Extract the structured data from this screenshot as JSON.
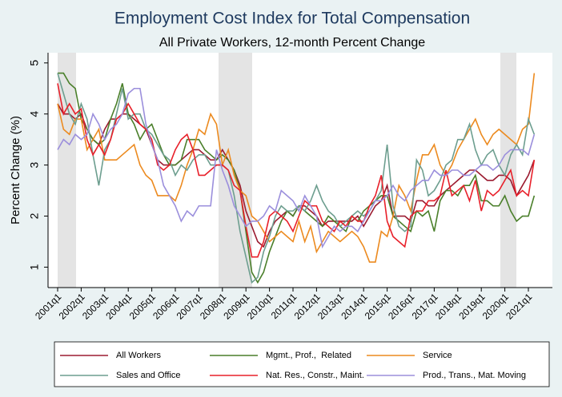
{
  "chart_data": {
    "type": "line",
    "title": "Employment Cost Index for Total Compensation",
    "subtitle": "All Private Workers, 12-month Percent Change",
    "y_label": "Percent Change (%)",
    "categories": [
      "2001q1",
      null,
      null,
      null,
      "2002q1",
      null,
      null,
      null,
      "2003q1",
      null,
      null,
      null,
      "2004q1",
      null,
      null,
      null,
      "2005q1",
      null,
      null,
      null,
      "2006q1",
      null,
      null,
      null,
      "2007q1",
      null,
      null,
      null,
      "2008q1",
      null,
      null,
      null,
      "2009q1",
      null,
      null,
      null,
      "2010q1",
      null,
      null,
      null,
      "2011q1",
      null,
      null,
      null,
      "2012q1",
      null,
      null,
      null,
      "2013q1",
      null,
      null,
      null,
      "2014q1",
      null,
      null,
      null,
      "2015q1",
      null,
      null,
      null,
      "2016q1",
      null,
      null,
      null,
      "2017q1",
      null,
      null,
      null,
      "2018q1",
      null,
      null,
      null,
      "2019q1",
      null,
      null,
      null,
      "2020q1",
      null,
      null,
      null,
      "2021q1",
      null
    ],
    "ylim": [
      0.6,
      5.2
    ],
    "yticks": [
      1,
      2,
      3,
      4,
      5
    ],
    "grid": false,
    "series": [
      {
        "name": "All Workers",
        "color": "#9b1b30",
        "values": [
          4.2,
          4.0,
          4.0,
          3.9,
          4.0,
          3.7,
          3.5,
          3.4,
          3.7,
          3.9,
          3.9,
          4.0,
          4.0,
          3.9,
          3.8,
          3.7,
          3.4,
          3.1,
          3.0,
          3.0,
          3.0,
          3.1,
          3.2,
          3.3,
          3.3,
          3.2,
          3.1,
          3.1,
          3.3,
          3.1,
          2.9,
          2.6,
          2.1,
          1.8,
          1.5,
          1.4,
          1.7,
          1.9,
          2.0,
          2.1,
          2.0,
          2.2,
          2.2,
          2.1,
          2.0,
          1.8,
          1.9,
          1.9,
          1.9,
          1.9,
          1.9,
          2.0,
          1.8,
          2.0,
          2.2,
          2.3,
          2.6,
          2.0,
          2.0,
          2.0,
          1.9,
          2.3,
          2.3,
          2.2,
          2.2,
          2.4,
          2.5,
          2.6,
          2.7,
          2.8,
          2.9,
          2.9,
          2.8,
          2.7,
          2.7,
          2.8,
          2.8,
          2.7,
          2.4,
          2.6,
          2.8,
          3.1
        ]
      },
      {
        "name": "Mgmt., Prof.,  Related",
        "color": "#4a7f2a",
        "values": [
          4.8,
          4.8,
          4.6,
          4.5,
          3.9,
          3.7,
          3.5,
          3.4,
          3.5,
          3.9,
          4.2,
          4.6,
          4.0,
          3.8,
          3.5,
          3.7,
          3.8,
          3.5,
          3.2,
          3.0,
          3.0,
          3.1,
          3.5,
          3.5,
          3.5,
          3.3,
          3.2,
          3.1,
          3.2,
          3.1,
          2.9,
          2.5,
          1.7,
          0.9,
          0.7,
          0.9,
          1.3,
          1.6,
          1.9,
          2.1,
          2.0,
          2.2,
          2.1,
          2.0,
          1.9,
          1.8,
          2.0,
          1.9,
          1.8,
          1.7,
          2.0,
          1.9,
          2.1,
          2.2,
          2.3,
          2.4,
          2.4,
          2.0,
          1.9,
          1.8,
          1.7,
          2.1,
          2.0,
          2.1,
          1.7,
          2.3,
          2.5,
          2.5,
          2.4,
          2.6,
          2.6,
          2.8,
          2.3,
          2.3,
          2.2,
          2.2,
          2.4,
          2.1,
          1.9,
          2.0,
          2.0,
          2.4
        ]
      },
      {
        "name": "Service",
        "color": "#ec8a1f",
        "values": [
          4.2,
          3.7,
          3.6,
          3.9,
          3.9,
          3.3,
          3.5,
          3.7,
          3.1,
          3.1,
          3.1,
          3.2,
          3.3,
          3.4,
          3.0,
          2.8,
          2.7,
          2.4,
          2.4,
          2.4,
          2.3,
          2.6,
          3.0,
          3.3,
          3.7,
          3.6,
          4.0,
          3.8,
          3.0,
          3.3,
          2.8,
          2.5,
          2.4,
          2.0,
          1.9,
          1.7,
          1.5,
          1.6,
          1.7,
          1.6,
          1.5,
          1.9,
          1.5,
          1.8,
          1.3,
          1.5,
          1.7,
          1.6,
          1.5,
          1.6,
          1.7,
          1.6,
          1.4,
          1.1,
          1.1,
          1.7,
          1.6,
          2.0,
          2.6,
          2.4,
          2.1,
          2.7,
          3.2,
          3.2,
          3.4,
          3.0,
          2.8,
          3.0,
          3.3,
          3.5,
          3.7,
          3.9,
          3.6,
          3.4,
          3.6,
          3.7,
          3.6,
          3.5,
          3.4,
          3.7,
          3.8,
          4.8
        ]
      },
      {
        "name": "Sales and Office",
        "color": "#6d9e8f",
        "values": [
          4.8,
          4.4,
          4.0,
          3.8,
          4.2,
          3.9,
          3.2,
          2.6,
          3.3,
          3.5,
          4.0,
          4.5,
          3.9,
          4.0,
          4.0,
          3.7,
          3.6,
          3.4,
          3.2,
          3.1,
          2.8,
          3.0,
          2.9,
          3.1,
          3.2,
          3.2,
          3.0,
          3.0,
          3.0,
          2.9,
          2.4,
          1.7,
          1.2,
          0.7,
          0.8,
          1.3,
          1.6,
          2.0,
          2.2,
          2.1,
          2.1,
          2.2,
          2.1,
          2.3,
          2.6,
          2.3,
          2.1,
          2.0,
          1.8,
          1.9,
          2.0,
          2.1,
          2.0,
          2.1,
          2.3,
          2.5,
          3.4,
          2.2,
          1.8,
          1.7,
          1.8,
          3.1,
          2.9,
          2.4,
          2.5,
          2.7,
          3.0,
          3.1,
          3.5,
          3.5,
          3.8,
          3.3,
          3.0,
          3.2,
          3.3,
          3.0,
          2.8,
          3.2,
          3.4,
          3.2,
          3.9,
          3.6
        ]
      },
      {
        "name": "Nat. Res., Constr., Maint.",
        "color": "#e8202a",
        "values": [
          4.6,
          4.0,
          4.2,
          4.0,
          4.1,
          3.5,
          3.2,
          3.4,
          3.2,
          3.5,
          3.9,
          4.0,
          4.2,
          4.0,
          3.8,
          3.7,
          3.5,
          3.0,
          2.9,
          3.0,
          3.3,
          3.5,
          3.6,
          3.3,
          2.8,
          2.8,
          2.9,
          3.0,
          3.0,
          2.9,
          2.6,
          2.5,
          1.8,
          1.2,
          1.2,
          1.5,
          2.0,
          2.1,
          2.0,
          1.9,
          1.7,
          2.0,
          2.3,
          2.2,
          2.2,
          1.9,
          1.8,
          1.7,
          1.9,
          1.8,
          2.0,
          1.9,
          1.9,
          2.2,
          2.4,
          2.8,
          1.9,
          1.6,
          1.5,
          1.4,
          2.0,
          2.1,
          2.1,
          2.3,
          2.3,
          2.4,
          2.9,
          2.4,
          2.5,
          2.6,
          2.3,
          2.7,
          2.1,
          2.5,
          2.4,
          2.5,
          2.7,
          2.9,
          2.4,
          2.5,
          2.4,
          3.1
        ]
      },
      {
        "name": "Prod., Trans., Mat. Moving",
        "color": "#9b8fdc",
        "values": [
          3.3,
          3.5,
          3.4,
          3.6,
          3.5,
          3.6,
          4.0,
          3.8,
          3.5,
          3.7,
          3.8,
          4.0,
          4.4,
          4.5,
          4.5,
          3.8,
          3.4,
          3.1,
          2.6,
          2.4,
          2.2,
          1.9,
          2.1,
          2.0,
          2.2,
          2.2,
          2.2,
          3.3,
          2.9,
          2.6,
          2.2,
          2.0,
          1.8,
          1.9,
          1.9,
          2.0,
          2.2,
          2.1,
          2.5,
          2.4,
          2.3,
          2.1,
          2.4,
          2.2,
          2.0,
          1.4,
          1.6,
          1.8,
          1.7,
          1.8,
          1.8,
          1.7,
          1.9,
          2.1,
          2.3,
          2.3,
          2.4,
          2.6,
          2.4,
          2.3,
          2.5,
          2.6,
          2.7,
          2.7,
          2.9,
          2.8,
          2.8,
          2.9,
          2.9,
          2.8,
          2.8,
          2.9,
          3.0,
          3.0,
          2.9,
          3.0,
          3.2,
          3.3,
          3.3,
          3.3,
          3.2,
          3.6
        ]
      }
    ]
  }
}
